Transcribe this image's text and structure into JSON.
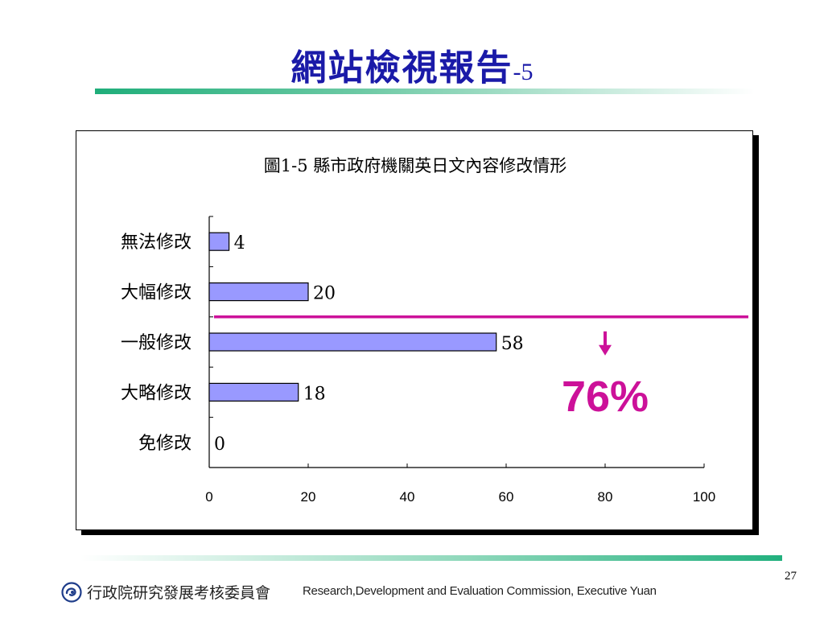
{
  "slide": {
    "title_main": "網站檢視報告",
    "title_suffix": "-5",
    "page_number": "27"
  },
  "footer": {
    "org_zh": "行政院研究發展考核委員會",
    "org_en": "Research,Development and Evaluation Commission, Executive Yuan",
    "logo_icon": "rdec-logo-icon"
  },
  "chart_data": {
    "type": "bar",
    "orientation": "horizontal",
    "title": "圖1-5 縣市政府機關英日文內容修改情形",
    "categories": [
      "無法修改",
      "大幅修改",
      "一般修改",
      "大略修改",
      "免修改"
    ],
    "values": [
      4,
      20,
      58,
      18,
      0
    ],
    "value_labels": [
      "4",
      "20",
      "58",
      "18",
      "0"
    ],
    "xlim": [
      0,
      100
    ],
    "xticks": [
      "0",
      "20",
      "40",
      "60",
      "80",
      "100"
    ],
    "grid": false,
    "bar_color": "#9999ff",
    "annotation": {
      "text": "76%",
      "color": "#cc1199",
      "divider_between": [
        "大幅修改",
        "一般修改"
      ],
      "arrow_at_x": 80
    }
  }
}
